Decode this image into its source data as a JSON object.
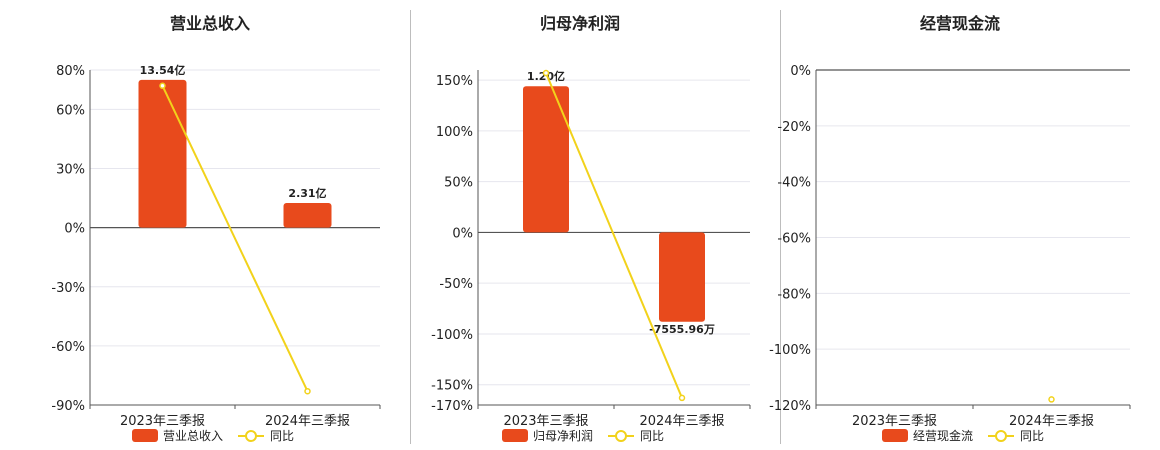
{
  "chart_data": [
    {
      "type": "bar",
      "title": "营业总收入",
      "categories": [
        "2023年三季报",
        "2024年三季报"
      ],
      "series": [
        {
          "name": "营业总收入",
          "type": "bar",
          "values": [
            75,
            12.5
          ],
          "labels": [
            "13.54亿",
            "2.31亿"
          ],
          "color": "#e84a1c"
        },
        {
          "name": "同比",
          "type": "line",
          "values": [
            72,
            -83
          ],
          "color": "#f2d21b"
        }
      ],
      "yticks": [
        "80%",
        "60%",
        "30%",
        "0%",
        "-30%",
        "-60%",
        "-90%"
      ],
      "ylim": [
        -90,
        80
      ],
      "yticks_values": [
        80,
        60,
        30,
        0,
        -30,
        -60,
        -90
      ]
    },
    {
      "type": "bar",
      "title": "归母净利润",
      "categories": [
        "2023年三季报",
        "2024年三季报"
      ],
      "series": [
        {
          "name": "归母净利润",
          "type": "bar",
          "values": [
            144,
            -88
          ],
          "labels": [
            "1.20亿",
            "-7555.96万"
          ],
          "color": "#e84a1c"
        },
        {
          "name": "同比",
          "type": "line",
          "values": [
            157,
            -163
          ],
          "color": "#f2d21b"
        }
      ],
      "yticks": [
        "150%",
        "100%",
        "50%",
        "0%",
        "-50%",
        "-100%",
        "-150%",
        "-170%"
      ],
      "ylim": [
        -170,
        160
      ],
      "yticks_values": [
        150,
        100,
        50,
        0,
        -50,
        -100,
        -150,
        -170
      ]
    },
    {
      "type": "bar",
      "title": "经营现金流",
      "categories": [
        "2023年三季报",
        "2024年三季报"
      ],
      "series": [
        {
          "name": "经营现金流",
          "type": "bar",
          "values": [
            null,
            null
          ],
          "labels": [
            "",
            ""
          ],
          "color": "#e84a1c"
        },
        {
          "name": "同比",
          "type": "line",
          "values": [
            null,
            -118
          ],
          "color": "#f2d21b"
        }
      ],
      "yticks": [
        "0%",
        "-20%",
        "-40%",
        "-60%",
        "-80%",
        "-100%",
        "-120%"
      ],
      "ylim": [
        -120,
        0
      ],
      "yticks_values": [
        0,
        -20,
        -40,
        -60,
        -80,
        -100,
        -120
      ]
    }
  ]
}
